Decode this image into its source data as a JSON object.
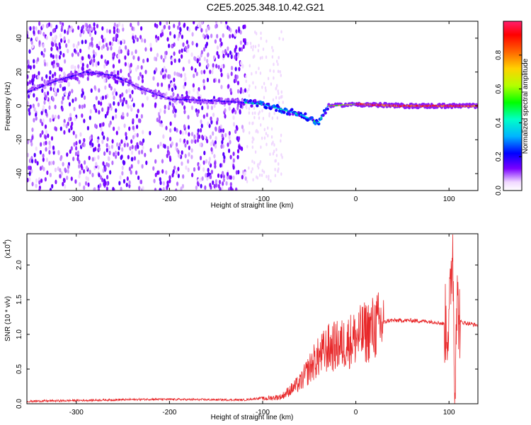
{
  "title": "C2E5.2025.348.10.42.G21",
  "chart_data": [
    {
      "type": "heatmap",
      "xlabel": "Height of straight line (km)",
      "ylabel": "Frequency (Hz)",
      "xlim": [
        -353,
        131
      ],
      "ylim": [
        -50,
        50
      ],
      "xticks": [
        -300,
        -200,
        -100,
        0,
        100
      ],
      "yticks": [
        -40,
        -20,
        0,
        20,
        40
      ],
      "colorbar": {
        "label": "Normalized spectral amplitude",
        "range": [
          0,
          1
        ],
        "ticks": [
          "0.0",
          "0.2",
          "0.4",
          "0.6",
          "0.8"
        ]
      },
      "ridge": {
        "description_points": [
          {
            "x": -353,
            "y": 8
          },
          {
            "x": -320,
            "y": 15
          },
          {
            "x": -290,
            "y": 20
          },
          {
            "x": -260,
            "y": 18
          },
          {
            "x": -230,
            "y": 10
          },
          {
            "x": -200,
            "y": 4
          },
          {
            "x": -150,
            "y": 3
          },
          {
            "x": -120,
            "y": 2
          },
          {
            "x": -100,
            "y": 1
          },
          {
            "x": -80,
            "y": -2
          },
          {
            "x": -60,
            "y": -5
          },
          {
            "x": -40,
            "y": -10
          },
          {
            "x": -30,
            "y": 0
          },
          {
            "x": 0,
            "y": 1
          },
          {
            "x": 50,
            "y": 0
          },
          {
            "x": 100,
            "y": 0
          },
          {
            "x": 131,
            "y": 0
          }
        ]
      }
    },
    {
      "type": "line",
      "xlabel": "Height of straight line (km)",
      "ylabel": "SNR (10 * v/v)",
      "yscale_label": "(x10",
      "yscale_exp": "4",
      "scale_note": ")",
      "xlim": [
        -353,
        131
      ],
      "ylim": [
        0,
        2.45
      ],
      "xticks": [
        -300,
        -200,
        -100,
        0,
        100
      ],
      "yticks": [
        "0.0",
        "0.5",
        "1.0",
        "1.5",
        "2.0"
      ],
      "series": [
        {
          "color": "#e8282a",
          "envelope": [
            {
              "x": -353,
              "y": 0.02
            },
            {
              "x": -220,
              "y": 0.05
            },
            {
              "x": -120,
              "y": 0.04
            },
            {
              "x": -80,
              "y": 0.1
            },
            {
              "x": -60,
              "y": 0.3
            },
            {
              "x": -45,
              "y": 0.6
            },
            {
              "x": -30,
              "y": 0.8
            },
            {
              "x": -15,
              "y": 0.85
            },
            {
              "x": 0,
              "y": 0.95
            },
            {
              "x": 20,
              "y": 1.1
            },
            {
              "x": 35,
              "y": 1.2
            },
            {
              "x": 60,
              "y": 1.2
            },
            {
              "x": 85,
              "y": 1.18
            },
            {
              "x": 95,
              "y": 1.15
            },
            {
              "x": 100,
              "y": 1.1
            },
            {
              "x": 104,
              "y": 2.4
            },
            {
              "x": 106,
              "y": 0.1
            },
            {
              "x": 108,
              "y": 1.5
            },
            {
              "x": 112,
              "y": 1.18
            },
            {
              "x": 131,
              "y": 1.13
            }
          ]
        }
      ]
    }
  ]
}
